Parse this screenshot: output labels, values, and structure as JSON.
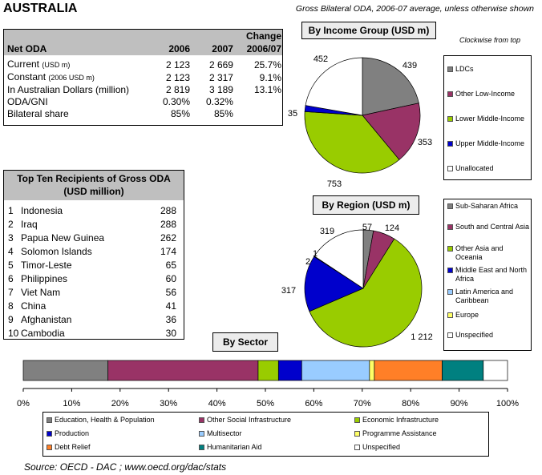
{
  "header": {
    "title": "AUSTRALIA",
    "subtitle": "Gross Bilateral ODA, 2006-07 average, unless otherwise shown"
  },
  "net_oda_table": {
    "col_label": "Net ODA",
    "col_2006": "2006",
    "col_2007": "2007",
    "col_change_1": "Change",
    "col_change_2": "2006/07",
    "rows": [
      {
        "label": "Current",
        "unit": "(USD m)",
        "v2006": "2 123",
        "v2007": "2 669",
        "change": "25.7%"
      },
      {
        "label": "Constant",
        "unit": "(2006 USD m)",
        "v2006": "2 123",
        "v2007": "2 317",
        "change": "9.1%"
      },
      {
        "label": "In Australian Dollars (million)",
        "unit": "",
        "v2006": "2 819",
        "v2007": "3 189",
        "change": "13.1%"
      },
      {
        "label": "ODA/GNI",
        "unit": "",
        "v2006": "0.30%",
        "v2007": "0.32%",
        "change": ""
      },
      {
        "label": "Bilateral share",
        "unit": "",
        "v2006": "85%",
        "v2007": "85%",
        "change": ""
      }
    ]
  },
  "recipients_table": {
    "title_1": "Top Ten Recipients of Gross ODA",
    "title_2": "(USD million)",
    "rows": [
      {
        "rank": "1",
        "name": "Indonesia",
        "value": "288"
      },
      {
        "rank": "2",
        "name": "Iraq",
        "value": "288"
      },
      {
        "rank": "3",
        "name": "Papua New Guinea",
        "value": "262"
      },
      {
        "rank": "4",
        "name": "Solomon Islands",
        "value": "174"
      },
      {
        "rank": "5",
        "name": "Timor-Leste",
        "value": "65"
      },
      {
        "rank": "6",
        "name": "Philippines",
        "value": "60"
      },
      {
        "rank": "7",
        "name": "Viet Nam",
        "value": "56"
      },
      {
        "rank": "8",
        "name": "China",
        "value": "41"
      },
      {
        "rank": "9",
        "name": "Afghanistan",
        "value": "36"
      },
      {
        "rank": "10",
        "name": "Cambodia",
        "value": "30"
      }
    ]
  },
  "income_chart": {
    "heading": "By Income Group (USD m)",
    "note": "Clockwise from top"
  },
  "region_chart": {
    "heading": "By Region (USD m)"
  },
  "sector_chart": {
    "heading": "By Sector"
  },
  "footer": {
    "source": "Source:  OECD - DAC ; www.oecd.org/dac/stats"
  },
  "chart_data": [
    {
      "type": "pie",
      "title": "By Income Group (USD m)",
      "labels": [
        "LDCs",
        "Other Low-Income",
        "Lower Middle-Income",
        "Upper Middle-Income",
        "Unallocated"
      ],
      "values": [
        439,
        353,
        753,
        35,
        452
      ],
      "value_labels": [
        "439",
        "353",
        "753",
        "35",
        "452"
      ],
      "colors": [
        "#808080",
        "#993366",
        "#99cc00",
        "#0000cc",
        "#ffffff"
      ],
      "direction": "clockwise from top"
    },
    {
      "type": "pie",
      "title": "By Region (USD m)",
      "labels": [
        "Sub-Saharan Africa",
        "South and Central Asia",
        "Other Asia and Oceania",
        "Middle East and North Africa",
        "Latin America and Caribbean",
        "Europe",
        "Unspecified"
      ],
      "values": [
        57,
        124,
        1212,
        317,
        2,
        1,
        319
      ],
      "value_labels": [
        "57",
        "124",
        "1 212",
        "317",
        "2",
        "1",
        "319"
      ],
      "colors": [
        "#808080",
        "#993366",
        "#99cc00",
        "#0000cc",
        "#99ccff",
        "#ffff66",
        "#ffffff"
      ],
      "direction": "clockwise from top"
    },
    {
      "type": "bar",
      "orientation": "horizontal-stacked-100",
      "title": "By Sector",
      "categories": [
        "Education, Health & Population",
        "Other Social Infrastructure",
        "Economic Infrastructure",
        "Production",
        "Multisector",
        "Programme Assistance",
        "Debt Relief",
        "Humanitarian Aid",
        "Unspecified"
      ],
      "values": [
        17.5,
        31,
        4.2,
        4.8,
        14,
        1,
        14,
        8.5,
        5
      ],
      "colors": [
        "#808080",
        "#993366",
        "#99cc00",
        "#0000cc",
        "#99ccff",
        "#ffff66",
        "#ff7f27",
        "#008080",
        "#ffffff"
      ],
      "xlim": [
        0,
        100
      ],
      "x_ticks": [
        "0%",
        "10%",
        "20%",
        "30%",
        "40%",
        "50%",
        "60%",
        "70%",
        "80%",
        "90%",
        "100%"
      ]
    }
  ]
}
